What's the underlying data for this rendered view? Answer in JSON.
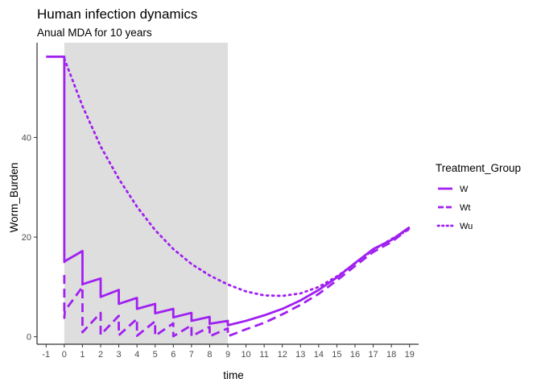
{
  "chart_data": {
    "type": "line",
    "title": "Human infection dynamics",
    "subtitle": "Anual MDA for 10 years",
    "xlabel": "time",
    "ylabel": "Worm_Burden",
    "xlim": [
      -1.5,
      19.5
    ],
    "ylim": [
      -1.5,
      59
    ],
    "x_ticks": [
      -1,
      0,
      1,
      2,
      3,
      4,
      5,
      6,
      7,
      8,
      9,
      10,
      11,
      12,
      13,
      14,
      15,
      16,
      17,
      18,
      19
    ],
    "y_ticks": [
      0,
      20,
      40
    ],
    "grid": false,
    "shaded_region": {
      "x": [
        0,
        9
      ],
      "color": "#dedede"
    },
    "line_color": "#a020f0",
    "legend": {
      "title": "Treatment_Group",
      "position": "right"
    },
    "series": [
      {
        "name": "W",
        "dash": "solid",
        "x": [
          -1,
          0,
          0,
          0.05,
          1,
          1,
          1.05,
          2,
          2,
          3,
          3,
          4,
          4,
          5,
          5,
          6,
          6,
          7,
          7,
          8,
          8,
          9,
          9,
          10,
          11,
          12,
          13,
          14,
          15,
          16,
          17,
          18,
          19
        ],
        "y": [
          56.2,
          56.2,
          15.0,
          15.2,
          17.2,
          10.5,
          10.6,
          11.7,
          8.0,
          9.4,
          6.6,
          7.8,
          5.6,
          6.6,
          4.7,
          5.6,
          3.9,
          4.8,
          3.2,
          4.0,
          2.6,
          3.2,
          2.3,
          3.2,
          4.3,
          5.6,
          7.3,
          9.4,
          11.9,
          14.8,
          17.6,
          19.4,
          22.0
        ]
      },
      {
        "name": "Wt",
        "dash": "dashed",
        "x": [
          0,
          0,
          0.03,
          1,
          1,
          2,
          2,
          3,
          3,
          4,
          4,
          5,
          5,
          6,
          6,
          7,
          7,
          8,
          8,
          9,
          9,
          10,
          11,
          12,
          13,
          14,
          15,
          16,
          17,
          18,
          19
        ],
        "y": [
          12.4,
          3.8,
          5.2,
          10.0,
          0.9,
          4.8,
          0.4,
          4.2,
          0.3,
          3.6,
          0.2,
          3.1,
          0.2,
          2.7,
          0.1,
          2.3,
          0.1,
          2.0,
          0.1,
          1.7,
          0.1,
          1.5,
          2.8,
          4.5,
          6.4,
          8.6,
          11.3,
          14.2,
          17.0,
          19.0,
          21.8
        ]
      },
      {
        "name": "Wu",
        "dash": "dotted",
        "x": [
          0,
          1,
          2,
          3,
          4,
          5,
          6,
          7,
          8,
          9,
          10,
          11,
          12,
          13,
          14,
          15,
          16,
          17,
          18,
          19
        ],
        "y": [
          55.8,
          46.3,
          38.2,
          31.7,
          26.1,
          21.4,
          17.6,
          14.6,
          12.3,
          10.5,
          9.1,
          8.3,
          8.2,
          8.7,
          10.0,
          12.1,
          14.7,
          17.4,
          19.6,
          21.6
        ]
      }
    ]
  }
}
